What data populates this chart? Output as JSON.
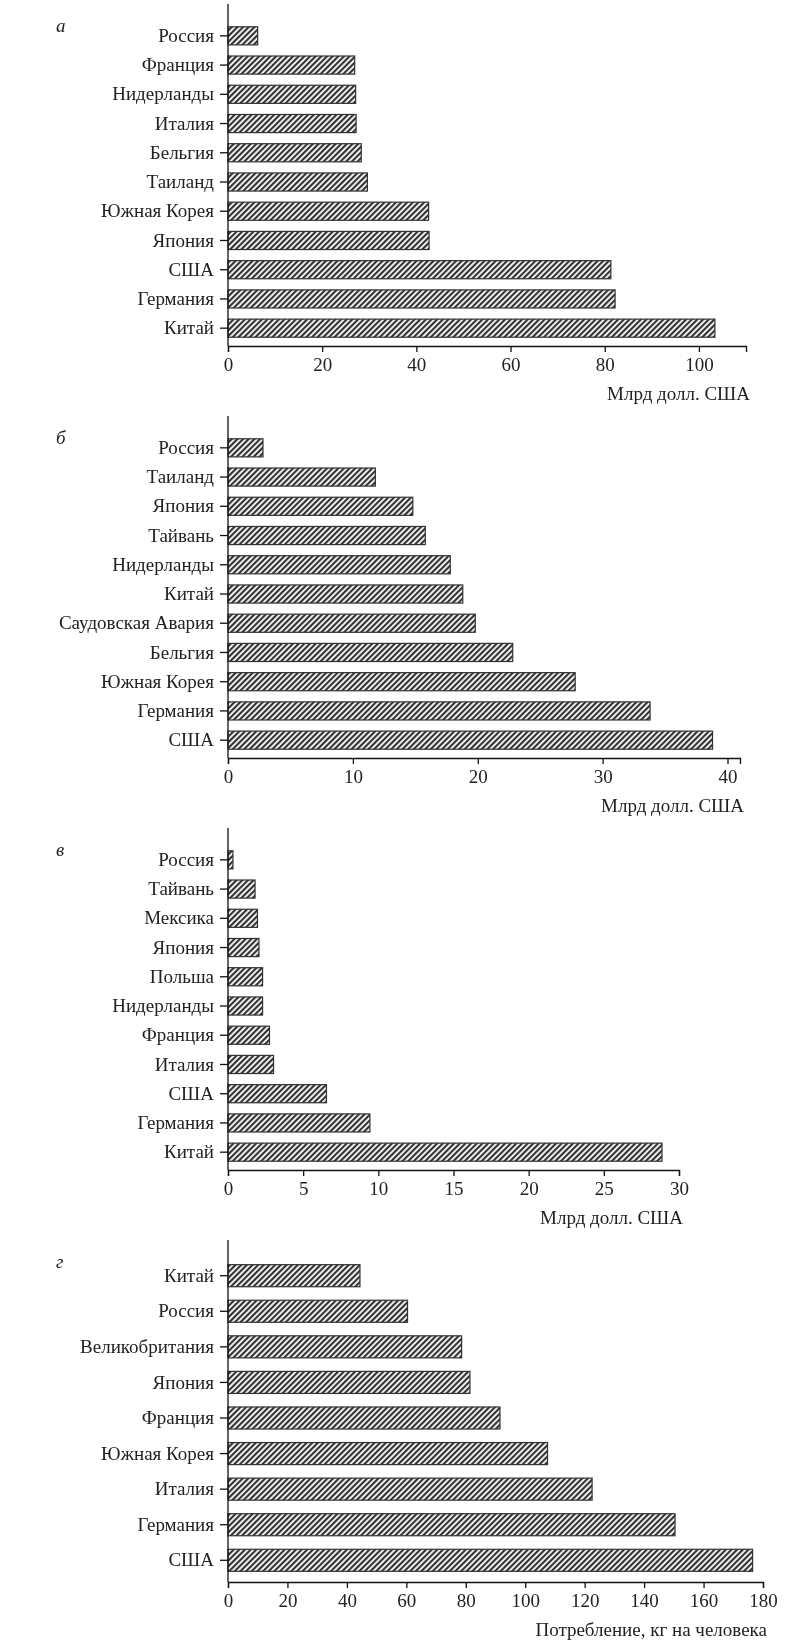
{
  "chart_data": [
    {
      "type": "bar",
      "orientation": "horizontal",
      "title": "а",
      "xlabel": "Млрд долл. США",
      "categories": [
        "Россия",
        "Франция",
        "Нидерланды",
        "Италия",
        "Бельгия",
        "Таиланд",
        "Южная Корея",
        "Япония",
        "США",
        "Германия",
        "Китай"
      ],
      "values": [
        6.3,
        26.9,
        27.1,
        27.2,
        28.3,
        29.6,
        42.6,
        42.7,
        81.3,
        82.2,
        103.4
      ],
      "color": "#333333",
      "xlim": [
        0,
        110
      ],
      "xticks": [
        0,
        20,
        40,
        60,
        80,
        100
      ],
      "grid": false
    },
    {
      "type": "bar",
      "orientation": "horizontal",
      "title": "б",
      "xlabel": "Млрд долл. США",
      "categories": [
        "Россия",
        "Таиланд",
        "Япония",
        "Тайвань",
        "Нидерланды",
        "Китай",
        "Саудовская Авария",
        "Бельгия",
        "Южная Корея",
        "Германия",
        "США"
      ],
      "values": [
        2.8,
        11.8,
        14.8,
        15.8,
        17.8,
        18.8,
        19.8,
        22.8,
        27.8,
        33.8,
        38.8
      ],
      "color": "#333333",
      "xlim": [
        0,
        41
      ],
      "xticks": [
        0,
        10,
        20,
        30,
        40
      ],
      "grid": false
    },
    {
      "type": "bar",
      "orientation": "horizontal",
      "title": "в",
      "xlabel": "Млрд долл. США",
      "categories": [
        "Россия",
        "Тайвань",
        "Мексика",
        "Япония",
        "Польша",
        "Нидерланды",
        "Франция",
        "Италия",
        "США",
        "Германия",
        "Китай"
      ],
      "values": [
        0.33,
        1.8,
        1.96,
        2.06,
        2.3,
        2.3,
        2.76,
        3.03,
        6.55,
        9.44,
        28.87
      ],
      "color": "#333333",
      "xlim": [
        0,
        30
      ],
      "xticks": [
        0,
        5,
        10,
        15,
        20,
        25,
        30
      ],
      "grid": false
    },
    {
      "type": "bar",
      "orientation": "horizontal",
      "title": "г",
      "xlabel": "Потребление, кг на человека",
      "categories": [
        "Китай",
        "Россия",
        "Великобритания",
        "Япония",
        "Франция",
        "Южная Корея",
        "Италия",
        "Германия",
        "США"
      ],
      "values": [
        44.4,
        60.4,
        78.6,
        81.4,
        91.5,
        107.5,
        122.5,
        150.4,
        176.5
      ],
      "color": "#333333",
      "xlim": [
        0,
        180
      ],
      "xticks": [
        0,
        20,
        40,
        60,
        80,
        100,
        120,
        140,
        160,
        180
      ],
      "grid": false
    }
  ]
}
